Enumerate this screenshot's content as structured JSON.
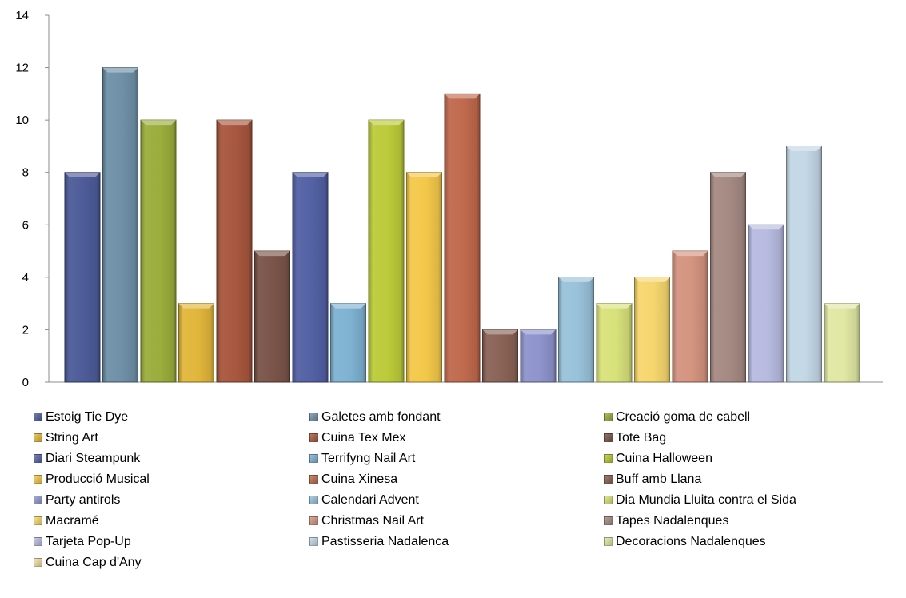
{
  "chart_data": {
    "type": "bar",
    "title": "",
    "xlabel": "",
    "ylabel": "",
    "ylim": [
      0,
      14
    ],
    "yticks": [
      0,
      2,
      4,
      6,
      8,
      10,
      12,
      14
    ],
    "grid": false,
    "legend_position": "bottom",
    "series": [
      {
        "name": "Estoig Tie Dye",
        "value": 8,
        "color": "#4d5c99"
      },
      {
        "name": "Galetes amb fondant",
        "value": 12,
        "color": "#6f90a8"
      },
      {
        "name": "Creació goma de cabell",
        "value": 10,
        "color": "#9bad3c"
      },
      {
        "name": "String Art",
        "value": 3,
        "color": "#e2b63b"
      },
      {
        "name": "Cuina Tex Mex",
        "value": 10,
        "color": "#a8573e"
      },
      {
        "name": "Tote Bag",
        "value": 5,
        "color": "#7a5449"
      },
      {
        "name": "Diari Steampunk",
        "value": 8,
        "color": "#5361a5"
      },
      {
        "name": "Terrifyng Nail Art",
        "value": 3,
        "color": "#7fb2d2"
      },
      {
        "name": "Cuina Halloween",
        "value": 10,
        "color": "#bccb3a"
      },
      {
        "name": "Producció Musical",
        "value": 8,
        "color": "#f3c84a"
      },
      {
        "name": "Cuina Xinesa",
        "value": 11,
        "color": "#c06a4e"
      },
      {
        "name": "Buff amb Llana",
        "value": 2,
        "color": "#8a6357"
      },
      {
        "name": "Party antirols",
        "value": 2,
        "color": "#8e94cc"
      },
      {
        "name": "Calendari Advent",
        "value": 4,
        "color": "#99c2da"
      },
      {
        "name": "Dia Mundia Lluita contra el Sida",
        "value": 3,
        "color": "#d8e27a"
      },
      {
        "name": "Macramé",
        "value": 4,
        "color": "#f5d66e"
      },
      {
        "name": "Christmas Nail Art",
        "value": 5,
        "color": "#d49480"
      },
      {
        "name": "Tapes Nadalenques",
        "value": 8,
        "color": "#a58a83"
      },
      {
        "name": "Tarjeta Pop-Up",
        "value": 6,
        "color": "#b7bbdf"
      },
      {
        "name": "Pastisseria Nadalenca",
        "value": 9,
        "color": "#c3d7e6"
      },
      {
        "name": "Decoracions Nadalenques",
        "value": 3,
        "color": "#e0e8a4"
      },
      {
        "name": "Cuina Cap d'Any",
        "value": 0,
        "color": "#f2dca0"
      }
    ]
  }
}
